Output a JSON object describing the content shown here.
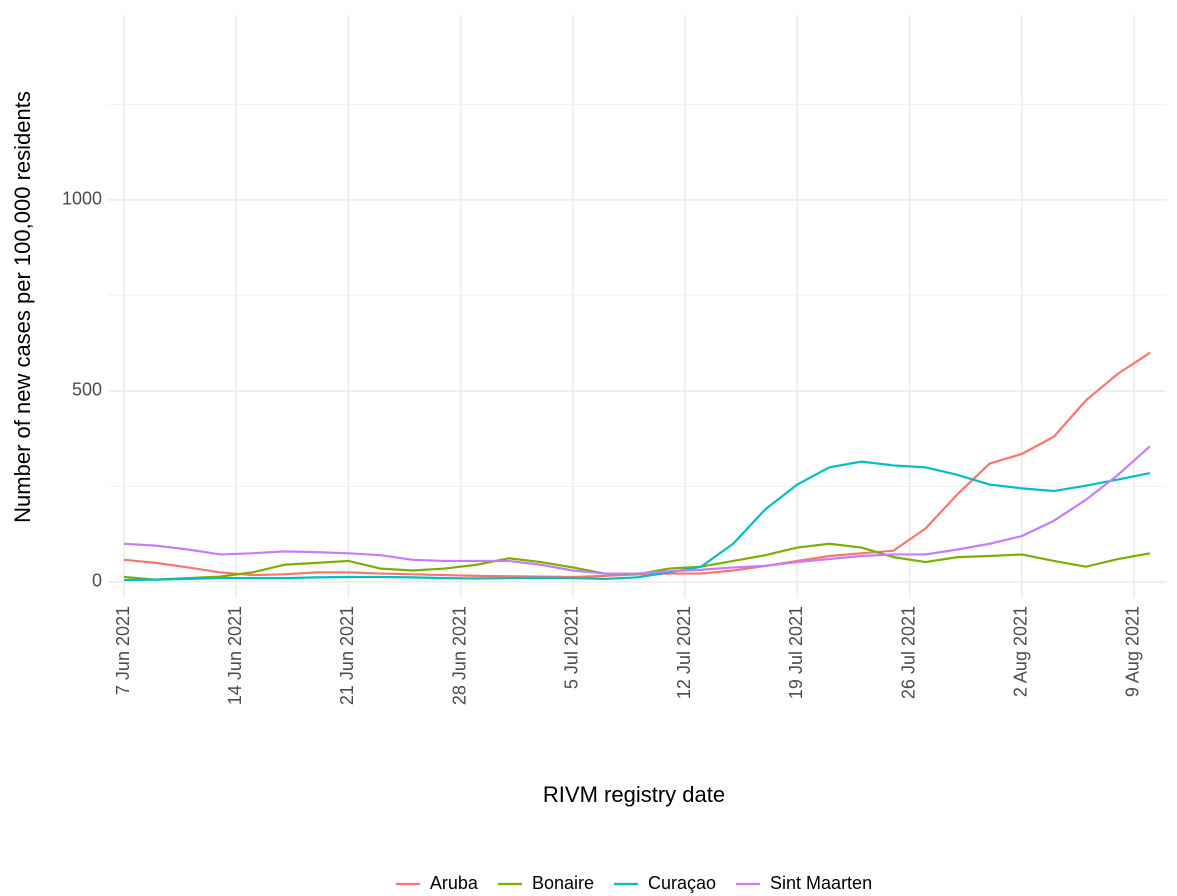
{
  "chart_data": {
    "type": "line",
    "xlabel": "RIVM registry date",
    "ylabel": "Number of new cases per 100,000 residents",
    "x": [
      "2021-06-07",
      "2021-06-09",
      "2021-06-11",
      "2021-06-13",
      "2021-06-15",
      "2021-06-17",
      "2021-06-19",
      "2021-06-21",
      "2021-06-23",
      "2021-06-25",
      "2021-06-27",
      "2021-06-29",
      "2021-07-01",
      "2021-07-03",
      "2021-07-05",
      "2021-07-07",
      "2021-07-09",
      "2021-07-11",
      "2021-07-13",
      "2021-07-15",
      "2021-07-17",
      "2021-07-19",
      "2021-07-21",
      "2021-07-23",
      "2021-07-25",
      "2021-07-27",
      "2021-07-29",
      "2021-07-31",
      "2021-08-02",
      "2021-08-04",
      "2021-08-06",
      "2021-08-08",
      "2021-08-10"
    ],
    "series": [
      {
        "name": "Aruba",
        "color": "#F8766D",
        "values": [
          58,
          50,
          38,
          25,
          18,
          20,
          25,
          25,
          22,
          20,
          18,
          16,
          15,
          14,
          13,
          16,
          20,
          22,
          22,
          30,
          42,
          55,
          68,
          75,
          82,
          140,
          230,
          310,
          335,
          380,
          475,
          545,
          600
        ]
      },
      {
        "name": "Bonaire",
        "color": "#7CAE00",
        "values": [
          13,
          6,
          10,
          14,
          25,
          45,
          50,
          55,
          35,
          30,
          35,
          45,
          62,
          52,
          38,
          22,
          20,
          35,
          40,
          55,
          70,
          90,
          100,
          90,
          65,
          52,
          65,
          68,
          72,
          55,
          40,
          60,
          75
        ]
      },
      {
        "name": "Curaçao",
        "color": "#00BFC4",
        "values": [
          5,
          6,
          8,
          10,
          10,
          10,
          12,
          13,
          13,
          12,
          10,
          9,
          10,
          11,
          10,
          8,
          12,
          25,
          40,
          100,
          190,
          255,
          300,
          315,
          305,
          300,
          280,
          255,
          245,
          238,
          252,
          268,
          285
        ]
      },
      {
        "name": "Sint Maarten",
        "color": "#C77CFF",
        "values": [
          100,
          95,
          85,
          72,
          75,
          80,
          78,
          75,
          70,
          58,
          55,
          55,
          55,
          45,
          30,
          22,
          22,
          28,
          32,
          38,
          42,
          52,
          60,
          68,
          72,
          72,
          85,
          100,
          120,
          160,
          215,
          280,
          355
        ]
      }
    ],
    "xlim": [
      "2021-06-06",
      "2021-08-11"
    ],
    "xticks": [
      {
        "value": "2021-06-07",
        "label": "7 Jun 2021"
      },
      {
        "value": "2021-06-14",
        "label": "14 Jun 2021"
      },
      {
        "value": "2021-06-21",
        "label": "21 Jun 2021"
      },
      {
        "value": "2021-06-28",
        "label": "28 Jun 2021"
      },
      {
        "value": "2021-07-05",
        "label": "5 Jul 2021"
      },
      {
        "value": "2021-07-12",
        "label": "12 Jul 2021"
      },
      {
        "value": "2021-07-19",
        "label": "19 Jul 2021"
      },
      {
        "value": "2021-07-26",
        "label": "26 Jul 2021"
      },
      {
        "value": "2021-08-02",
        "label": "2 Aug 2021"
      },
      {
        "value": "2021-08-09",
        "label": "9 Aug 2021"
      }
    ],
    "ylim": [
      -42,
      1484
    ],
    "yticks": [
      0,
      500,
      1000
    ],
    "grid": true,
    "legend": "bottom"
  }
}
